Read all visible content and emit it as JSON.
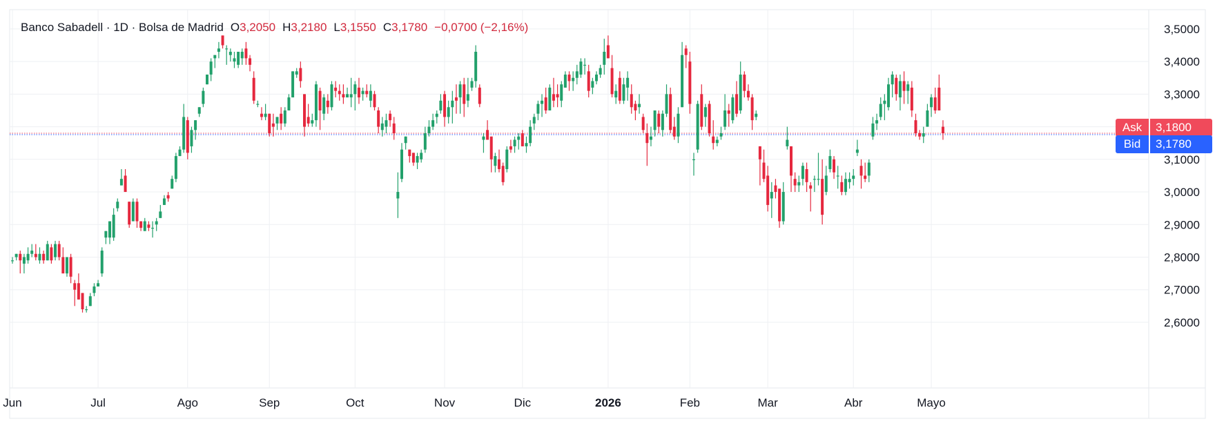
{
  "legend": {
    "symbol": "Banco Sabadell · 1D · Bolsa de Madrid",
    "o_label": "O",
    "o_value": "3,2050",
    "h_label": "H",
    "h_value": "3,2180",
    "l_label": "L",
    "l_value": "3,1550",
    "c_label": "C",
    "c_value": "3,1780",
    "change": "−0,0700 (−2,16%)"
  },
  "ask": {
    "label": "Ask",
    "value": "3,1800",
    "price": 3.18
  },
  "bid": {
    "label": "Bid",
    "value": "3,1780",
    "price": 3.178
  },
  "colors": {
    "up": "#22a06b",
    "down": "#e5283e",
    "ask": "#f04a5b",
    "bid": "#2962ff",
    "grid": "#eef0f3",
    "text": "#131722"
  },
  "chart_data": {
    "type": "candlestick",
    "title": "Banco Sabadell · 1D · Bolsa de Madrid",
    "ylim": [
      2.56,
      3.56
    ],
    "y_ticks": [
      "2,6000",
      "2,7000",
      "2,8000",
      "2,9000",
      "3,0000",
      "3,1000",
      "3,2000",
      "3,3000",
      "3,4000",
      "3,5000"
    ],
    "y_tick_values": [
      2.6,
      2.7,
      2.8,
      2.9,
      3.0,
      3.1,
      3.2,
      3.3,
      3.4,
      3.5
    ],
    "x_ticks": [
      {
        "label": "Jun",
        "index": 0
      },
      {
        "label": "Jul",
        "index": 22
      },
      {
        "label": "Ago",
        "index": 45
      },
      {
        "label": "Sep",
        "index": 66
      },
      {
        "label": "Oct",
        "index": 88
      },
      {
        "label": "Nov",
        "index": 111
      },
      {
        "label": "Dic",
        "index": 131
      },
      {
        "label": "2026",
        "index": 153,
        "bold": true
      },
      {
        "label": "Feb",
        "index": 174
      },
      {
        "label": "Mar",
        "index": 194
      },
      {
        "label": "Abr",
        "index": 216
      },
      {
        "label": "Mayo",
        "index": 236
      }
    ],
    "grid": true,
    "ohlc": [
      [
        2.79,
        2.8,
        2.78,
        2.79
      ],
      [
        2.8,
        2.81,
        2.79,
        2.81
      ],
      [
        2.81,
        2.82,
        2.75,
        2.79
      ],
      [
        2.78,
        2.81,
        2.75,
        2.8
      ],
      [
        2.79,
        2.83,
        2.78,
        2.81
      ],
      [
        2.81,
        2.84,
        2.8,
        2.82
      ],
      [
        2.81,
        2.84,
        2.79,
        2.8
      ],
      [
        2.79,
        2.83,
        2.78,
        2.81
      ],
      [
        2.81,
        2.82,
        2.78,
        2.79
      ],
      [
        2.79,
        2.85,
        2.79,
        2.84
      ],
      [
        2.83,
        2.84,
        2.78,
        2.79
      ],
      [
        2.8,
        2.85,
        2.79,
        2.84
      ],
      [
        2.84,
        2.85,
        2.79,
        2.8
      ],
      [
        2.8,
        2.83,
        2.75,
        2.75
      ],
      [
        2.75,
        2.8,
        2.74,
        2.8
      ],
      [
        2.8,
        2.81,
        2.72,
        2.74
      ],
      [
        2.72,
        2.73,
        2.65,
        2.7
      ],
      [
        2.72,
        2.75,
        2.67,
        2.67
      ],
      [
        2.69,
        2.69,
        2.63,
        2.64
      ],
      [
        2.64,
        2.65,
        2.63,
        2.64
      ],
      [
        2.65,
        2.69,
        2.65,
        2.68
      ],
      [
        2.69,
        2.72,
        2.68,
        2.71
      ],
      [
        2.71,
        2.73,
        2.71,
        2.72
      ],
      [
        2.75,
        2.83,
        2.74,
        2.82
      ],
      [
        2.86,
        2.88,
        2.84,
        2.88
      ],
      [
        2.86,
        2.91,
        2.84,
        2.91
      ],
      [
        2.86,
        2.95,
        2.85,
        2.93
      ],
      [
        2.95,
        2.98,
        2.94,
        2.97
      ],
      [
        3.02,
        3.07,
        3.02,
        3.04
      ],
      [
        3.05,
        3.07,
        3.0,
        3.0
      ],
      [
        2.97,
        2.97,
        2.89,
        2.9
      ],
      [
        2.91,
        2.98,
        2.91,
        2.97
      ],
      [
        2.97,
        2.98,
        2.89,
        2.91
      ],
      [
        2.91,
        2.91,
        2.88,
        2.89
      ],
      [
        2.88,
        2.92,
        2.88,
        2.91
      ],
      [
        2.9,
        2.91,
        2.88,
        2.89
      ],
      [
        2.89,
        2.91,
        2.86,
        2.89
      ],
      [
        2.9,
        2.92,
        2.88,
        2.91
      ],
      [
        2.92,
        2.96,
        2.92,
        2.94
      ],
      [
        2.96,
        2.99,
        2.96,
        2.98
      ],
      [
        2.99,
        3.0,
        2.97,
        2.98
      ],
      [
        3.01,
        3.05,
        3.01,
        3.04
      ],
      [
        3.04,
        3.12,
        3.03,
        3.11
      ],
      [
        3.11,
        3.14,
        3.11,
        3.13
      ],
      [
        3.13,
        3.27,
        3.12,
        3.23
      ],
      [
        3.22,
        3.23,
        3.1,
        3.12
      ],
      [
        3.14,
        3.2,
        3.12,
        3.19
      ],
      [
        3.19,
        3.22,
        3.16,
        3.22
      ],
      [
        3.24,
        3.26,
        3.23,
        3.26
      ],
      [
        3.27,
        3.32,
        3.26,
        3.31
      ],
      [
        3.33,
        3.36,
        3.33,
        3.36
      ],
      [
        3.36,
        3.41,
        3.34,
        3.4
      ],
      [
        3.41,
        3.42,
        3.38,
        3.42
      ],
      [
        3.43,
        3.46,
        3.41,
        3.44
      ],
      [
        3.48,
        3.48,
        3.44,
        3.45
      ],
      [
        3.44,
        3.45,
        3.39,
        3.44
      ],
      [
        3.42,
        3.44,
        3.4,
        3.43
      ],
      [
        3.4,
        3.43,
        3.38,
        3.41
      ],
      [
        3.39,
        3.43,
        3.38,
        3.43
      ],
      [
        3.41,
        3.44,
        3.39,
        3.43
      ],
      [
        3.44,
        3.46,
        3.39,
        3.41
      ],
      [
        3.41,
        3.42,
        3.37,
        3.39
      ],
      [
        3.35,
        3.37,
        3.27,
        3.28
      ],
      [
        3.27,
        3.28,
        3.26,
        3.27
      ],
      [
        3.24,
        3.26,
        3.22,
        3.23
      ],
      [
        3.23,
        3.27,
        3.22,
        3.24
      ],
      [
        3.24,
        3.24,
        3.17,
        3.18
      ],
      [
        3.21,
        3.24,
        3.17,
        3.2
      ],
      [
        3.21,
        3.23,
        3.19,
        3.23
      ],
      [
        3.24,
        3.26,
        3.19,
        3.21
      ],
      [
        3.21,
        3.26,
        3.2,
        3.25
      ],
      [
        3.25,
        3.3,
        3.25,
        3.29
      ],
      [
        3.29,
        3.37,
        3.29,
        3.37
      ],
      [
        3.36,
        3.38,
        3.35,
        3.37
      ],
      [
        3.38,
        3.4,
        3.32,
        3.34
      ],
      [
        3.3,
        3.3,
        3.17,
        3.2
      ],
      [
        3.23,
        3.27,
        3.2,
        3.21
      ],
      [
        3.21,
        3.24,
        3.2,
        3.22
      ],
      [
        3.22,
        3.34,
        3.2,
        3.33
      ],
      [
        3.31,
        3.32,
        3.19,
        3.25
      ],
      [
        3.24,
        3.3,
        3.22,
        3.29
      ],
      [
        3.28,
        3.3,
        3.24,
        3.26
      ],
      [
        3.26,
        3.34,
        3.25,
        3.33
      ],
      [
        3.32,
        3.34,
        3.29,
        3.31
      ],
      [
        3.31,
        3.33,
        3.28,
        3.3
      ],
      [
        3.3,
        3.33,
        3.27,
        3.29
      ],
      [
        3.29,
        3.32,
        3.29,
        3.3
      ],
      [
        3.29,
        3.35,
        3.26,
        3.3
      ],
      [
        3.3,
        3.34,
        3.25,
        3.33
      ],
      [
        3.32,
        3.35,
        3.27,
        3.29
      ],
      [
        3.3,
        3.32,
        3.28,
        3.31
      ],
      [
        3.31,
        3.33,
        3.29,
        3.3
      ],
      [
        3.28,
        3.33,
        3.26,
        3.31
      ],
      [
        3.3,
        3.31,
        3.25,
        3.26
      ],
      [
        3.25,
        3.26,
        3.18,
        3.2
      ],
      [
        3.19,
        3.23,
        3.17,
        3.21
      ],
      [
        3.2,
        3.24,
        3.18,
        3.22
      ],
      [
        3.24,
        3.25,
        3.2,
        3.22
      ],
      [
        3.21,
        3.23,
        3.16,
        3.18
      ],
      [
        2.98,
        3.06,
        2.92,
        3.0
      ],
      [
        3.04,
        3.15,
        3.03,
        3.13
      ],
      [
        3.15,
        3.17,
        3.13,
        3.17
      ],
      [
        3.13,
        3.13,
        3.09,
        3.11
      ],
      [
        3.12,
        3.12,
        3.08,
        3.09
      ],
      [
        3.09,
        3.12,
        3.07,
        3.11
      ],
      [
        3.1,
        3.13,
        3.09,
        3.12
      ],
      [
        3.13,
        3.2,
        3.12,
        3.18
      ],
      [
        3.18,
        3.22,
        3.17,
        3.2
      ],
      [
        3.2,
        3.24,
        3.19,
        3.22
      ],
      [
        3.23,
        3.25,
        3.21,
        3.24
      ],
      [
        3.25,
        3.3,
        3.24,
        3.28
      ],
      [
        3.3,
        3.31,
        3.2,
        3.23
      ],
      [
        3.23,
        3.28,
        3.21,
        3.26
      ],
      [
        3.26,
        3.31,
        3.21,
        3.28
      ],
      [
        3.29,
        3.33,
        3.24,
        3.28
      ],
      [
        3.29,
        3.34,
        3.24,
        3.33
      ],
      [
        3.33,
        3.35,
        3.23,
        3.27
      ],
      [
        3.28,
        3.35,
        3.26,
        3.3
      ],
      [
        3.32,
        3.35,
        3.31,
        3.34
      ],
      [
        3.34,
        3.45,
        3.32,
        3.43
      ],
      [
        3.32,
        3.33,
        3.26,
        3.27
      ],
      [
        3.16,
        3.18,
        3.12,
        3.17
      ],
      [
        3.19,
        3.22,
        3.16,
        3.16
      ],
      [
        3.17,
        3.17,
        3.06,
        3.1
      ],
      [
        3.08,
        3.12,
        3.06,
        3.11
      ],
      [
        3.1,
        3.13,
        3.06,
        3.07
      ],
      [
        3.08,
        3.09,
        3.02,
        3.03
      ],
      [
        3.07,
        3.14,
        3.06,
        3.13
      ],
      [
        3.14,
        3.16,
        3.12,
        3.13
      ],
      [
        3.14,
        3.17,
        3.12,
        3.16
      ],
      [
        3.16,
        3.18,
        3.13,
        3.17
      ],
      [
        3.18,
        3.19,
        3.14,
        3.14
      ],
      [
        3.14,
        3.17,
        3.12,
        3.15
      ],
      [
        3.15,
        3.22,
        3.14,
        3.2
      ],
      [
        3.21,
        3.24,
        3.19,
        3.23
      ],
      [
        3.24,
        3.28,
        3.22,
        3.27
      ],
      [
        3.27,
        3.3,
        3.23,
        3.28
      ],
      [
        3.29,
        3.32,
        3.24,
        3.25
      ],
      [
        3.25,
        3.33,
        3.25,
        3.32
      ],
      [
        3.3,
        3.35,
        3.26,
        3.28
      ],
      [
        3.3,
        3.33,
        3.26,
        3.29
      ],
      [
        3.28,
        3.34,
        3.26,
        3.33
      ],
      [
        3.32,
        3.37,
        3.32,
        3.36
      ],
      [
        3.36,
        3.37,
        3.31,
        3.34
      ],
      [
        3.34,
        3.37,
        3.31,
        3.35
      ],
      [
        3.35,
        3.39,
        3.33,
        3.37
      ],
      [
        3.36,
        3.41,
        3.35,
        3.4
      ],
      [
        3.39,
        3.41,
        3.36,
        3.39
      ],
      [
        3.37,
        3.39,
        3.29,
        3.31
      ],
      [
        3.32,
        3.35,
        3.3,
        3.34
      ],
      [
        3.34,
        3.37,
        3.33,
        3.36
      ],
      [
        3.36,
        3.39,
        3.35,
        3.38
      ],
      [
        3.39,
        3.47,
        3.36,
        3.43
      ],
      [
        3.45,
        3.48,
        3.41,
        3.41
      ],
      [
        3.38,
        3.42,
        3.29,
        3.3
      ],
      [
        3.29,
        3.33,
        3.27,
        3.31
      ],
      [
        3.35,
        3.37,
        3.27,
        3.28
      ],
      [
        3.28,
        3.35,
        3.27,
        3.33
      ],
      [
        3.32,
        3.37,
        3.28,
        3.35
      ],
      [
        3.3,
        3.33,
        3.24,
        3.26
      ],
      [
        3.27,
        3.28,
        3.22,
        3.25
      ],
      [
        3.26,
        3.3,
        3.24,
        3.27
      ],
      [
        3.23,
        3.24,
        3.18,
        3.19
      ],
      [
        3.18,
        3.21,
        3.08,
        3.15
      ],
      [
        3.16,
        3.2,
        3.14,
        3.17
      ],
      [
        3.19,
        3.25,
        3.17,
        3.25
      ],
      [
        3.24,
        3.25,
        3.18,
        3.2
      ],
      [
        3.19,
        3.25,
        3.17,
        3.24
      ],
      [
        3.24,
        3.33,
        3.23,
        3.3
      ],
      [
        3.3,
        3.32,
        3.18,
        3.19
      ],
      [
        3.2,
        3.23,
        3.16,
        3.17
      ],
      [
        3.17,
        3.26,
        3.15,
        3.24
      ],
      [
        3.26,
        3.46,
        3.26,
        3.42
      ],
      [
        3.44,
        3.45,
        3.38,
        3.42
      ],
      [
        3.4,
        3.43,
        3.24,
        3.27
      ],
      [
        3.1,
        3.12,
        3.05,
        3.1
      ],
      [
        3.13,
        3.28,
        3.12,
        3.27
      ],
      [
        3.3,
        3.33,
        3.19,
        3.2
      ],
      [
        3.23,
        3.27,
        3.2,
        3.26
      ],
      [
        3.27,
        3.28,
        3.17,
        3.18
      ],
      [
        3.17,
        3.22,
        3.13,
        3.15
      ],
      [
        3.15,
        3.17,
        3.14,
        3.16
      ],
      [
        3.17,
        3.2,
        3.16,
        3.18
      ],
      [
        3.2,
        3.3,
        3.19,
        3.25
      ],
      [
        3.25,
        3.27,
        3.2,
        3.24
      ],
      [
        3.22,
        3.3,
        3.21,
        3.29
      ],
      [
        3.3,
        3.34,
        3.23,
        3.24
      ],
      [
        3.25,
        3.4,
        3.24,
        3.36
      ],
      [
        3.36,
        3.37,
        3.29,
        3.31
      ],
      [
        3.31,
        3.33,
        3.28,
        3.29
      ],
      [
        3.29,
        3.3,
        3.19,
        3.22
      ],
      [
        3.23,
        3.25,
        3.22,
        3.24
      ],
      [
        3.14,
        3.14,
        3.02,
        3.1
      ],
      [
        3.09,
        3.13,
        3.03,
        3.04
      ],
      [
        3.05,
        3.08,
        2.94,
        2.96
      ],
      [
        2.98,
        3.03,
        2.92,
        3.0
      ],
      [
        3.02,
        3.04,
        2.98,
        3.0
      ],
      [
        3.01,
        3.01,
        2.89,
        2.91
      ],
      [
        2.91,
        3.03,
        2.9,
        3.0
      ],
      [
        3.14,
        3.2,
        3.13,
        3.16
      ],
      [
        3.14,
        3.14,
        3.0,
        3.05
      ],
      [
        3.04,
        3.06,
        3.0,
        3.02
      ],
      [
        3.02,
        3.05,
        3.0,
        3.03
      ],
      [
        3.04,
        3.09,
        3.02,
        3.08
      ],
      [
        3.07,
        3.09,
        3.0,
        3.03
      ],
      [
        3.02,
        3.03,
        2.94,
        3.01
      ],
      [
        3.04,
        3.05,
        3.0,
        3.04
      ],
      [
        3.04,
        3.12,
        3.02,
        3.04
      ],
      [
        3.04,
        3.1,
        2.9,
        2.93
      ],
      [
        3.0,
        3.08,
        2.99,
        3.05
      ],
      [
        3.07,
        3.13,
        3.06,
        3.11
      ],
      [
        3.1,
        3.11,
        3.04,
        3.06
      ],
      [
        3.05,
        3.08,
        3.01,
        3.05
      ],
      [
        3.03,
        3.05,
        2.99,
        3.0
      ],
      [
        3.0,
        3.06,
        2.99,
        3.04
      ],
      [
        3.03,
        3.06,
        3.01,
        3.04
      ],
      [
        3.04,
        3.07,
        3.02,
        3.05
      ],
      [
        3.12,
        3.16,
        3.11,
        3.13
      ],
      [
        3.08,
        3.1,
        3.01,
        3.05
      ],
      [
        3.05,
        3.09,
        3.03,
        3.04
      ],
      [
        3.05,
        3.1,
        3.03,
        3.09
      ],
      [
        3.17,
        3.23,
        3.16,
        3.21
      ],
      [
        3.21,
        3.24,
        3.19,
        3.22
      ],
      [
        3.23,
        3.29,
        3.22,
        3.27
      ],
      [
        3.27,
        3.3,
        3.22,
        3.28
      ],
      [
        3.26,
        3.35,
        3.25,
        3.33
      ],
      [
        3.33,
        3.37,
        3.29,
        3.36
      ],
      [
        3.35,
        3.36,
        3.28,
        3.3
      ],
      [
        3.29,
        3.36,
        3.25,
        3.34
      ],
      [
        3.34,
        3.37,
        3.27,
        3.31
      ],
      [
        3.31,
        3.34,
        3.27,
        3.33
      ],
      [
        3.32,
        3.34,
        3.23,
        3.25
      ],
      [
        3.22,
        3.24,
        3.17,
        3.18
      ],
      [
        3.18,
        3.19,
        3.16,
        3.17
      ],
      [
        3.17,
        3.2,
        3.15,
        3.18
      ],
      [
        3.2,
        3.27,
        3.2,
        3.25
      ],
      [
        3.26,
        3.3,
        3.23,
        3.29
      ],
      [
        3.29,
        3.32,
        3.24,
        3.25
      ],
      [
        3.32,
        3.36,
        3.25,
        3.25
      ],
      [
        3.2,
        3.22,
        3.16,
        3.18
      ]
    ]
  }
}
